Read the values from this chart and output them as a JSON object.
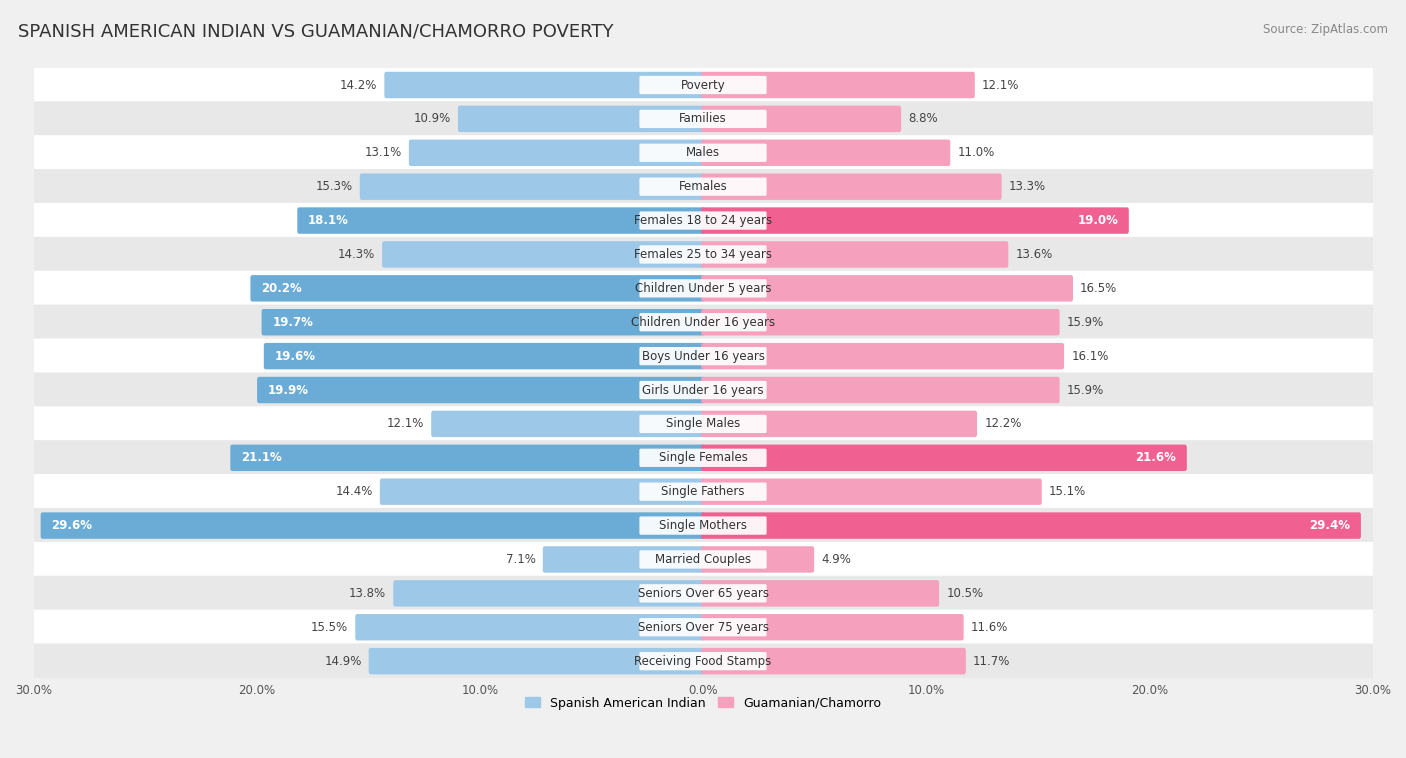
{
  "title": "SPANISH AMERICAN INDIAN VS GUAMANIAN/CHAMORRO POVERTY",
  "source": "Source: ZipAtlas.com",
  "categories": [
    "Poverty",
    "Families",
    "Males",
    "Females",
    "Females 18 to 24 years",
    "Females 25 to 34 years",
    "Children Under 5 years",
    "Children Under 16 years",
    "Boys Under 16 years",
    "Girls Under 16 years",
    "Single Males",
    "Single Females",
    "Single Fathers",
    "Single Mothers",
    "Married Couples",
    "Seniors Over 65 years",
    "Seniors Over 75 years",
    "Receiving Food Stamps"
  ],
  "left_values": [
    14.2,
    10.9,
    13.1,
    15.3,
    18.1,
    14.3,
    20.2,
    19.7,
    19.6,
    19.9,
    12.1,
    21.1,
    14.4,
    29.6,
    7.1,
    13.8,
    15.5,
    14.9
  ],
  "right_values": [
    12.1,
    8.8,
    11.0,
    13.3,
    19.0,
    13.6,
    16.5,
    15.9,
    16.1,
    15.9,
    12.2,
    21.6,
    15.1,
    29.4,
    4.9,
    10.5,
    11.6,
    11.7
  ],
  "left_color_normal": "#9ec8e8",
  "left_color_highlight": "#6aacd5",
  "right_color_normal": "#f5a0bc",
  "right_color_highlight": "#f06090",
  "highlight_threshold": 17.0,
  "xlim": 30.0,
  "left_label": "Spanish American Indian",
  "right_label": "Guamanian/Chamorro",
  "bg_color": "#f0f0f0",
  "row_colors_odd": "#ffffff",
  "row_colors_even": "#e8e8e8",
  "bar_height": 0.62,
  "title_fontsize": 13,
  "label_fontsize": 8.5,
  "tick_fontsize": 8.5,
  "source_fontsize": 8.5,
  "cat_label_fontsize": 8.5
}
